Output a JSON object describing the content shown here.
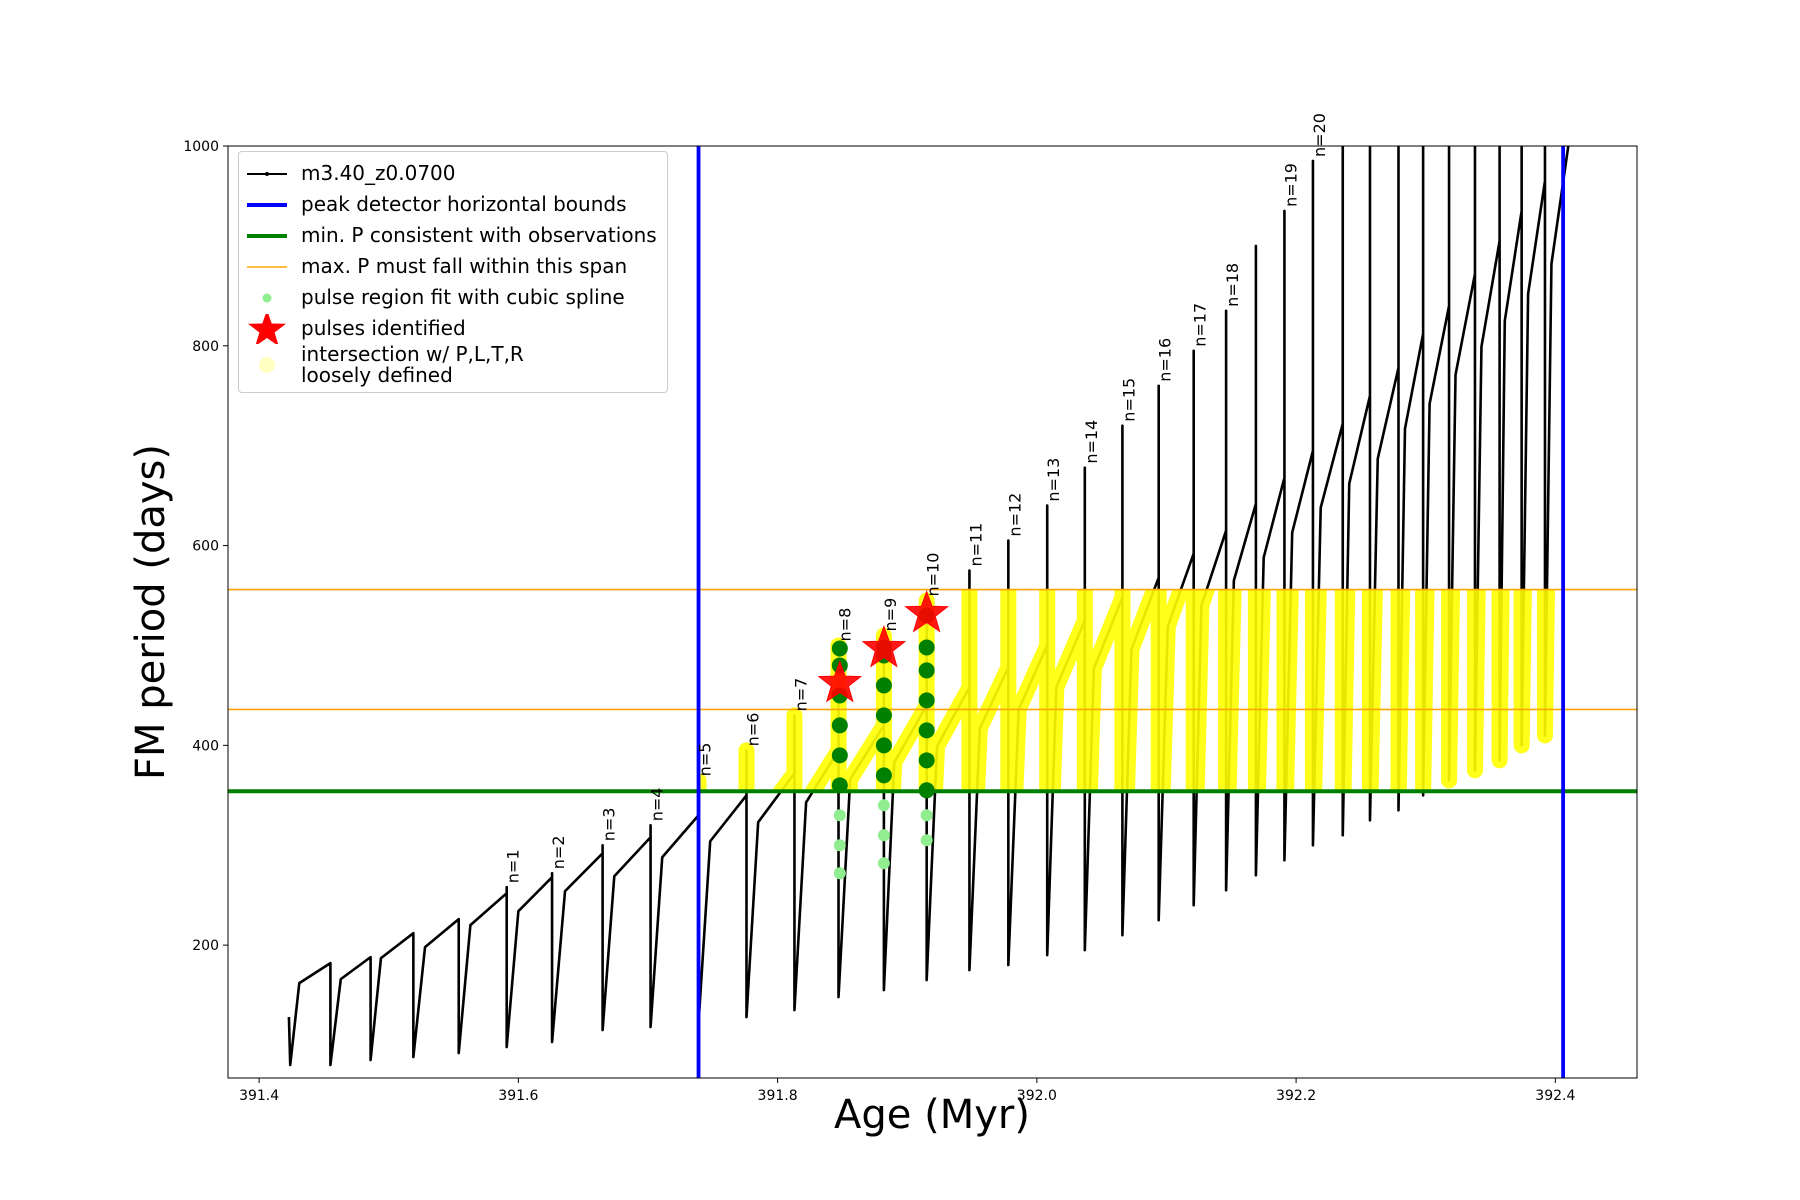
{
  "chart_data": {
    "type": "line",
    "x_label": "Age (Myr)",
    "y_label": "FM period (days)",
    "xlim": [
      391.376,
      392.463
    ],
    "ylim": [
      67,
      1000
    ],
    "xticks": [
      391.4,
      391.6,
      391.8,
      {
        "value": 392.0,
        "label": "392.0"
      },
      392.2,
      392.4
    ],
    "yticks": [
      200,
      400,
      600,
      800,
      1000
    ],
    "grid": false,
    "legend": "upper left",
    "series": [
      {
        "name": "m3.40_z0.0700",
        "color": "#000000",
        "kind": "line",
        "x": [
          391.423,
          391.424,
          391.431,
          391.455,
          391.455,
          391.463,
          391.486,
          391.486,
          391.494,
          391.519,
          391.519,
          391.528,
          391.554,
          391.554,
          391.563,
          391.591,
          391.591,
          391.591,
          391.6,
          391.626,
          391.626,
          391.626,
          391.636,
          391.665,
          391.665,
          391.665,
          391.674,
          391.702,
          391.702,
          391.702,
          391.711,
          391.739,
          391.739,
          391.739,
          391.748,
          391.776,
          391.776,
          391.776,
          391.785,
          391.813,
          391.813,
          391.813,
          391.822,
          391.847,
          391.847,
          391.847,
          391.856,
          391.882,
          391.882,
          391.882,
          391.89,
          391.915,
          391.915,
          391.915,
          391.923,
          391.948,
          391.948,
          391.948,
          391.956,
          391.978,
          391.978,
          391.978,
          391.986,
          392.008,
          392.008,
          392.008,
          392.015,
          392.037,
          392.037,
          392.037,
          392.044,
          392.066,
          392.066,
          392.066,
          392.073,
          392.094,
          392.094,
          392.094,
          392.101,
          392.121,
          392.121,
          392.121,
          392.127,
          392.146,
          392.146,
          392.146,
          392.152,
          392.169,
          392.169,
          392.169,
          392.175,
          392.191,
          392.191,
          392.191,
          392.197,
          392.213,
          392.213,
          392.213,
          392.219,
          392.236,
          392.236,
          392.236,
          392.241,
          392.257,
          392.257,
          392.257,
          392.263,
          392.279,
          392.279,
          392.279,
          392.284,
          392.298,
          392.298,
          392.298,
          392.303,
          392.318,
          392.318,
          392.318,
          392.323,
          392.338,
          392.338,
          392.338,
          392.343,
          392.357,
          392.357,
          392.357,
          392.361,
          392.374,
          392.374,
          392.374,
          392.379,
          392.392,
          392.392,
          392.392,
          392.397,
          392.41
        ],
        "values": [
          128,
          80,
          162,
          182,
          80,
          166,
          188,
          85,
          187,
          212,
          88,
          198,
          226,
          92,
          220,
          252,
          258,
          98,
          234,
          268,
          272,
          103,
          254,
          292,
          300,
          115,
          269,
          308,
          320,
          118,
          288,
          330,
          365,
          122,
          304,
          350,
          395,
          128,
          323,
          372,
          430,
          135,
          343,
          395,
          500,
          148,
          366,
          420,
          510,
          155,
          383,
          440,
          545,
          165,
          399,
          458,
          575,
          175,
          417,
          478,
          605,
          180,
          436,
          500,
          640,
          190,
          458,
          525,
          678,
          195,
          477,
          548,
          720,
          210,
          496,
          568,
          760,
          225,
          519,
          592,
          795,
          240,
          540,
          615,
          835,
          255,
          565,
          642,
          900,
          270,
          588,
          668,
          935,
          285,
          613,
          695,
          985,
          300,
          638,
          722,
          1000,
          310,
          662,
          750,
          1000,
          325,
          687,
          778,
          1000,
          335,
          717,
          812,
          1000,
          350,
          742,
          840,
          1000,
          365,
          771,
          872,
          1000,
          375,
          799,
          905,
          1000,
          385,
          825,
          935,
          1000,
          400,
          852,
          965,
          1000,
          410,
          882,
          1000
        ]
      },
      {
        "name": "peak detector horizontal bounds",
        "color": "#0000ff",
        "kind": "vline",
        "x": [
          391.739,
          392.406
        ]
      },
      {
        "name": "min. P consistent with observations",
        "color": "#008000",
        "kind": "hline",
        "values": [
          354
        ]
      },
      {
        "name": "max. P must fall within this span",
        "color": "#ffa500",
        "kind": "hline",
        "values": [
          556,
          436
        ]
      },
      {
        "name": "pulse region fit with cubic spline",
        "color": "#90ee90",
        "kind": "scatter",
        "x": [
          391.848,
          391.848,
          391.848,
          391.848,
          391.848,
          391.848,
          391.848,
          391.848,
          391.848,
          391.882,
          391.882,
          391.882,
          391.882,
          391.882,
          391.882,
          391.882,
          391.882,
          391.882,
          391.915,
          391.915,
          391.915,
          391.915,
          391.915,
          391.915,
          391.915,
          391.915,
          391.915
        ],
        "values": [
          272,
          300,
          330,
          360,
          390,
          420,
          450,
          480,
          497,
          282,
          310,
          340,
          370,
          400,
          430,
          460,
          490,
          498,
          305,
          330,
          355,
          385,
          415,
          445,
          475,
          498,
          530
        ]
      },
      {
        "name": "pulses identified",
        "color": "#ff0000",
        "kind": "star",
        "x": [
          391.848,
          391.882,
          391.915
        ],
        "values": [
          462,
          497,
          532
        ]
      },
      {
        "name": "intersection w/ P,L,T,R\nloosely defined",
        "color": "#ffff00",
        "kind": "highlight"
      }
    ],
    "annotations": [
      {
        "text": "n=1",
        "x": 391.591,
        "y": 258
      },
      {
        "text": "n=2",
        "x": 391.626,
        "y": 272
      },
      {
        "text": "n=3",
        "x": 391.665,
        "y": 300
      },
      {
        "text": "n=4",
        "x": 391.702,
        "y": 320
      },
      {
        "text": "n=5",
        "x": 391.739,
        "y": 365
      },
      {
        "text": "n=6",
        "x": 391.776,
        "y": 395
      },
      {
        "text": "n=7",
        "x": 391.813,
        "y": 430
      },
      {
        "text": "n=8",
        "x": 391.847,
        "y": 500
      },
      {
        "text": "n=9",
        "x": 391.882,
        "y": 510
      },
      {
        "text": "n=10",
        "x": 391.915,
        "y": 545
      },
      {
        "text": "n=11",
        "x": 391.948,
        "y": 575
      },
      {
        "text": "n=12",
        "x": 391.978,
        "y": 605
      },
      {
        "text": "n=13",
        "x": 392.008,
        "y": 640
      },
      {
        "text": "n=14",
        "x": 392.037,
        "y": 678
      },
      {
        "text": "n=15",
        "x": 392.066,
        "y": 720
      },
      {
        "text": "n=16",
        "x": 392.094,
        "y": 760
      },
      {
        "text": "n=17",
        "x": 392.121,
        "y": 795
      },
      {
        "text": "n=18",
        "x": 392.146,
        "y": 835
      },
      {
        "text": "n=19",
        "x": 392.191,
        "y": 935
      },
      {
        "text": "n=20",
        "x": 392.213,
        "y": 985
      }
    ]
  }
}
